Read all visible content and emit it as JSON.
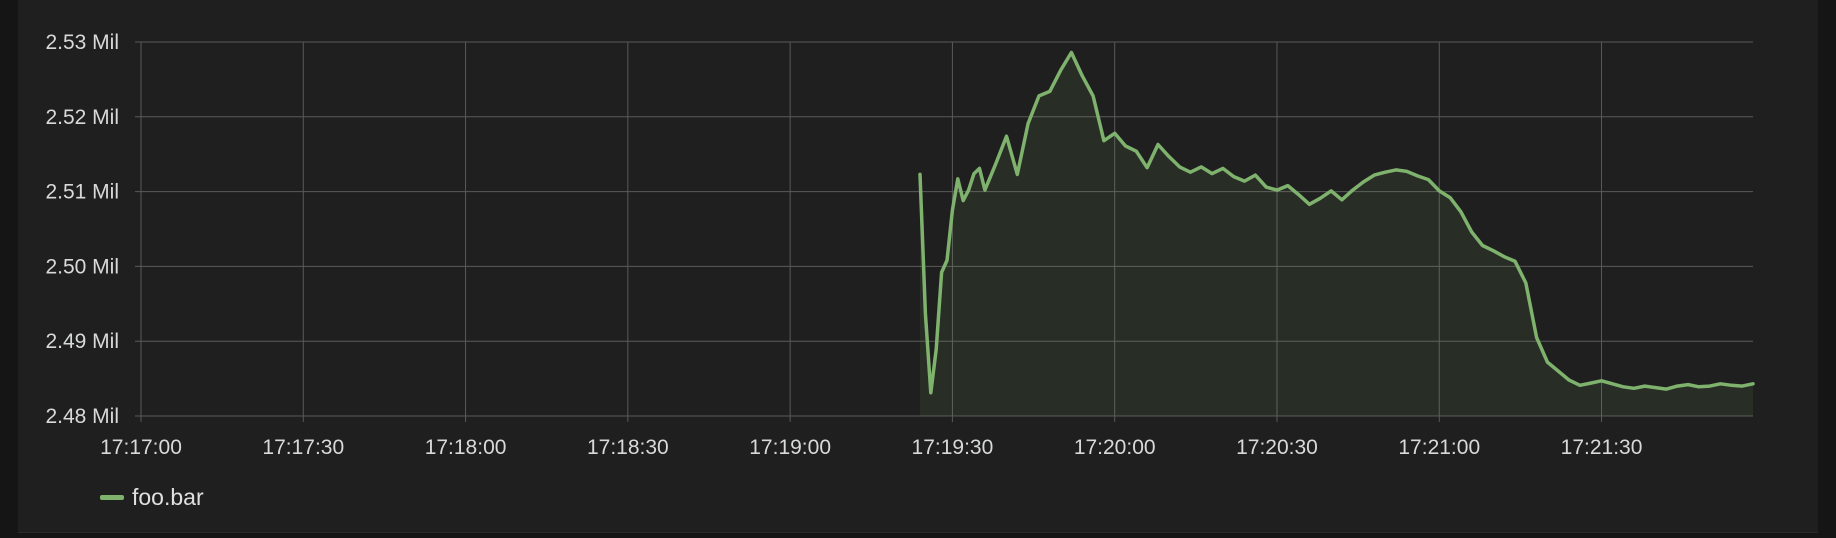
{
  "chart_data": {
    "type": "area",
    "x_ticks": [
      "17:17:00",
      "17:17:30",
      "17:18:00",
      "17:18:30",
      "17:19:00",
      "17:19:30",
      "17:20:00",
      "17:20:30",
      "17:21:00",
      "17:21:30"
    ],
    "y_ticks": [
      "2.48 Mil",
      "2.49 Mil",
      "2.50 Mil",
      "2.51 Mil",
      "2.52 Mil",
      "2.53 Mil"
    ],
    "xlim": [
      "17:17:00",
      "17:21:58"
    ],
    "ylim": [
      2.48,
      2.53
    ],
    "y_unit": "Mil",
    "grid": true,
    "legend_position": "bottom-left",
    "series": [
      {
        "name": "foo.bar",
        "color": "#7eb26d",
        "x": [
          "17:19:24",
          "17:19:25",
          "17:19:26",
          "17:19:27",
          "17:19:28",
          "17:19:29",
          "17:19:30",
          "17:19:31",
          "17:19:32",
          "17:19:33",
          "17:19:34",
          "17:19:35",
          "17:19:36",
          "17:19:38",
          "17:19:40",
          "17:19:42",
          "17:19:44",
          "17:19:46",
          "17:19:48",
          "17:19:50",
          "17:19:52",
          "17:19:54",
          "17:19:56",
          "17:19:58",
          "17:20:00",
          "17:20:02",
          "17:20:04",
          "17:20:06",
          "17:20:08",
          "17:20:10",
          "17:20:12",
          "17:20:14",
          "17:20:16",
          "17:20:18",
          "17:20:20",
          "17:20:22",
          "17:20:24",
          "17:20:26",
          "17:20:28",
          "17:20:30",
          "17:20:32",
          "17:20:34",
          "17:20:36",
          "17:20:38",
          "17:20:40",
          "17:20:42",
          "17:20:44",
          "17:20:46",
          "17:20:48",
          "17:20:50",
          "17:20:52",
          "17:20:54",
          "17:20:56",
          "17:20:58",
          "17:21:00",
          "17:21:02",
          "17:21:04",
          "17:21:06",
          "17:21:08",
          "17:21:10",
          "17:21:12",
          "17:21:14",
          "17:21:16",
          "17:21:18",
          "17:21:20",
          "17:21:22",
          "17:21:24",
          "17:21:26",
          "17:21:28",
          "17:21:30",
          "17:21:32",
          "17:21:34",
          "17:21:36",
          "17:21:38",
          "17:21:40",
          "17:21:42",
          "17:21:44",
          "17:21:46",
          "17:21:48",
          "17:21:50",
          "17:21:52",
          "17:21:54",
          "17:21:56",
          "17:21:58"
        ],
        "values": [
          2.5123,
          2.4937,
          2.4831,
          2.4889,
          2.4992,
          2.5008,
          2.5075,
          2.5117,
          2.5088,
          2.5102,
          2.5124,
          2.5131,
          2.5102,
          2.5137,
          2.5174,
          2.5123,
          2.5191,
          2.5228,
          2.5234,
          2.5262,
          2.5286,
          2.5255,
          2.5228,
          2.5168,
          2.5178,
          2.5161,
          2.5154,
          2.5132,
          2.5163,
          2.5147,
          2.5133,
          2.5126,
          2.5133,
          2.5124,
          2.5131,
          2.512,
          2.5114,
          2.5122,
          2.5106,
          2.5102,
          2.5108,
          2.5096,
          2.5083,
          2.5091,
          2.5101,
          2.5089,
          2.5102,
          2.5113,
          2.5122,
          2.5126,
          2.5129,
          2.5127,
          2.5121,
          2.5116,
          2.5101,
          2.5092,
          2.5073,
          2.5046,
          2.5028,
          2.5021,
          2.5013,
          2.5007,
          2.4978,
          2.4905,
          2.4872,
          2.486,
          2.4848,
          2.4841,
          2.4844,
          2.4847,
          2.4843,
          2.4839,
          2.4837,
          2.484,
          2.4838,
          2.4836,
          2.484,
          2.4842,
          2.4839,
          2.484,
          2.4843,
          2.4841,
          2.484,
          2.4843
        ]
      }
    ]
  }
}
